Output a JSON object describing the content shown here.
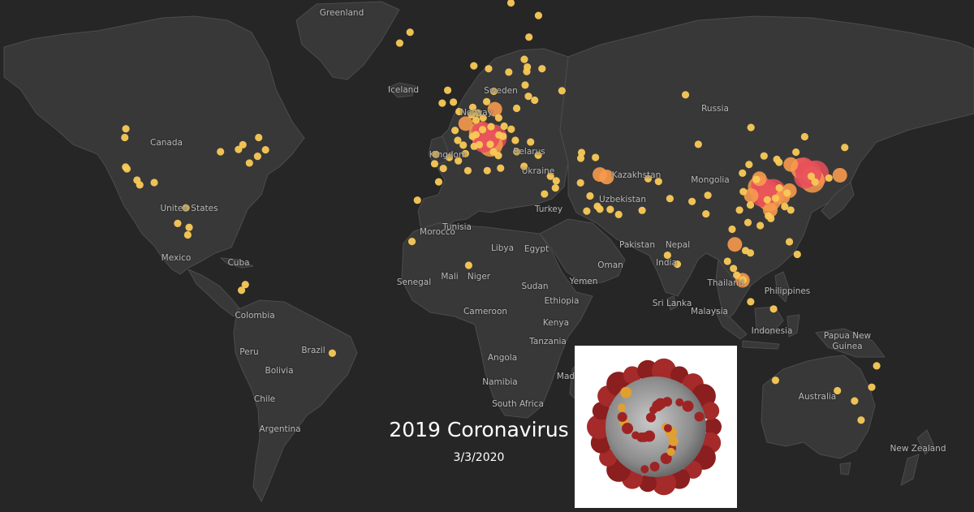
{
  "title": "2019 Coronavirus",
  "date": "3/3/2020",
  "labels": {
    "greenland": "Greenland",
    "iceland": "Iceland",
    "sweden": "Sweden",
    "norway": "Norway",
    "russia": "Russia",
    "canada": "Canada",
    "united_states": "United States",
    "kingdom": "Kingdom",
    "belarus": "Belarus",
    "ukraine": "Ukraine",
    "kazakhstan": "Kazakhstan",
    "mongolia": "Mongolia",
    "uzbekistan": "Uzbekistan",
    "turkey": "Turkey",
    "tunisia": "Tunisia",
    "morocco": "Morocco",
    "libya": "Libya",
    "egypt": "Egypt",
    "pakistan": "Pakistan",
    "nepal": "Nepal",
    "india": "India",
    "oman": "Oman",
    "yemen": "Yemen",
    "mexico": "Mexico",
    "cuba": "Cuba",
    "senegal": "Senegal",
    "mali": "Mali",
    "niger": "Niger",
    "sudan": "Sudan",
    "ethiopia": "Ethiopia",
    "cameroon": "Cameroon",
    "kenya": "Kenya",
    "tanzania": "Tanzania",
    "angola": "Angola",
    "namibia": "Namibia",
    "south_africa": "South Africa",
    "madagascar": "Mad",
    "thailand": "Thailand",
    "philippines": "Philippines",
    "sri_lanka": "Sri Lanka",
    "malaysia": "Malaysia",
    "indonesia": "Indonesia",
    "papua_new_guinea": "Papua New Guinea",
    "colombia": "Colombia",
    "peru": "Peru",
    "brazil": "Brazil",
    "bolivia": "Bolivia",
    "chile": "Chile",
    "argentina": "Argentina",
    "australia": "Australia",
    "new_zealand": "New Zealand"
  },
  "colors": {
    "background": "#262626",
    "land": "#383838",
    "border": "#4c4c4c",
    "marker_small": "#f9c956",
    "marker_medium": "#f79a4e",
    "marker_large": "#e8505b"
  },
  "markers": [
    {
      "lon": 112.3,
      "lat": 30.6,
      "level": "large"
    },
    {
      "lon": 10.0,
      "lat": 45.5,
      "level": "large"
    },
    {
      "lon": 128.0,
      "lat": 36.0,
      "level": "large"
    },
    {
      "lon": 54.0,
      "lat": 35.0,
      "level": "medium"
    },
    {
      "lon": 51.5,
      "lat": 35.7,
      "level": "medium"
    },
    {
      "lon": 114.0,
      "lat": 25.0,
      "level": "medium"
    },
    {
      "lon": 118.5,
      "lat": 29.0,
      "level": "medium"
    },
    {
      "lon": 110.0,
      "lat": 34.5,
      "level": "medium"
    },
    {
      "lon": 121.0,
      "lat": 31.0,
      "level": "medium"
    },
    {
      "lon": 139.5,
      "lat": 35.5,
      "level": "medium"
    },
    {
      "lon": 2.3,
      "lat": 48.8,
      "level": "medium"
    },
    {
      "lon": 13.0,
      "lat": 52.0,
      "level": "medium"
    },
    {
      "lon": 103.8,
      "lat": 1.3,
      "level": "medium"
    },
    {
      "lon": 101.0,
      "lat": 13.7,
      "level": "medium"
    },
    {
      "lon": 121.5,
      "lat": 38.5,
      "level": "medium"
    },
    {
      "lon": 107.0,
      "lat": 29.5,
      "level": "medium"
    },
    {
      "lon": 116.4,
      "lat": 39.9,
      "level": "small"
    },
    {
      "lon": 126.6,
      "lat": 45.7,
      "level": "small"
    },
    {
      "lon": 123.4,
      "lat": 41.8,
      "level": "small"
    },
    {
      "lon": 117.2,
      "lat": 39.1,
      "level": "small"
    },
    {
      "lon": 113.3,
      "lat": 23.1,
      "level": "small"
    },
    {
      "lon": 108.9,
      "lat": 34.3,
      "level": "small"
    },
    {
      "lon": 104.1,
      "lat": 30.7,
      "level": "small"
    },
    {
      "lon": 102.7,
      "lat": 25.0,
      "level": "small"
    },
    {
      "lon": 106.7,
      "lat": 26.6,
      "level": "small"
    },
    {
      "lon": 120.2,
      "lat": 30.3,
      "level": "small"
    },
    {
      "lon": 119.3,
      "lat": 26.1,
      "level": "small"
    },
    {
      "lon": 117.3,
      "lat": 31.8,
      "level": "small"
    },
    {
      "lon": 115.9,
      "lat": 28.7,
      "level": "small"
    },
    {
      "lon": 112.9,
      "lat": 28.2,
      "level": "small"
    },
    {
      "lon": 110.3,
      "lat": 20.0,
      "level": "small"
    },
    {
      "lon": 114.2,
      "lat": 22.3,
      "level": "small"
    },
    {
      "lon": 121.5,
      "lat": 25.0,
      "level": "small"
    },
    {
      "lon": 87.6,
      "lat": 43.8,
      "level": "small"
    },
    {
      "lon": 91.1,
      "lat": 29.6,
      "level": "small"
    },
    {
      "lon": 111.7,
      "lat": 40.8,
      "level": "small"
    },
    {
      "lon": 106.2,
      "lat": 38.5,
      "level": "small"
    },
    {
      "lon": 103.8,
      "lat": 36.1,
      "level": "small"
    },
    {
      "lon": 106.9,
      "lat": 47.9,
      "level": "small"
    },
    {
      "lon": 129.0,
      "lat": 35.2,
      "level": "small"
    },
    {
      "lon": 135.5,
      "lat": 34.7,
      "level": "small"
    },
    {
      "lon": 141.3,
      "lat": 43.0,
      "level": "small"
    },
    {
      "lon": 130.4,
      "lat": 33.6,
      "level": "small"
    },
    {
      "lon": 104.0,
      "lat": 1.4,
      "level": "small"
    },
    {
      "lon": 101.7,
      "lat": 3.1,
      "level": "small"
    },
    {
      "lon": 100.5,
      "lat": 5.4,
      "level": "small"
    },
    {
      "lon": 105.8,
      "lat": 21.0,
      "level": "small"
    },
    {
      "lon": 106.7,
      "lat": 10.8,
      "level": "small"
    },
    {
      "lon": 104.9,
      "lat": 11.6,
      "level": "small"
    },
    {
      "lon": 98.3,
      "lat": 7.9,
      "level": "small"
    },
    {
      "lon": 100.0,
      "lat": 18.8,
      "level": "small"
    },
    {
      "lon": 121.0,
      "lat": 14.6,
      "level": "small"
    },
    {
      "lon": 123.9,
      "lat": 10.3,
      "level": "small"
    },
    {
      "lon": 106.8,
      "lat": -6.2,
      "level": "small"
    },
    {
      "lon": 115.2,
      "lat": -8.7,
      "level": "small"
    },
    {
      "lon": 79.9,
      "lat": 6.9,
      "level": "small"
    },
    {
      "lon": 77.2,
      "lat": 28.6,
      "level": "small"
    },
    {
      "lon": 76.3,
      "lat": 10.0,
      "level": "small"
    },
    {
      "lon": 85.3,
      "lat": 27.7,
      "level": "small"
    },
    {
      "lon": 90.4,
      "lat": 23.8,
      "level": "small"
    },
    {
      "lon": 73.0,
      "lat": 33.7,
      "level": "small"
    },
    {
      "lon": 67.0,
      "lat": 24.9,
      "level": "small"
    },
    {
      "lon": 69.2,
      "lat": 34.5,
      "level": "small"
    },
    {
      "lon": 44.5,
      "lat": 40.2,
      "level": "small"
    },
    {
      "lon": 44.8,
      "lat": 41.7,
      "level": "small"
    },
    {
      "lon": 49.9,
      "lat": 40.4,
      "level": "small"
    },
    {
      "lon": 44.4,
      "lat": 33.3,
      "level": "small"
    },
    {
      "lon": 47.9,
      "lat": 29.4,
      "level": "small"
    },
    {
      "lon": 50.6,
      "lat": 26.2,
      "level": "small"
    },
    {
      "lon": 51.5,
      "lat": 25.3,
      "level": "small"
    },
    {
      "lon": 55.3,
      "lat": 25.2,
      "level": "small"
    },
    {
      "lon": 58.4,
      "lat": 23.6,
      "level": "small"
    },
    {
      "lon": 46.7,
      "lat": 24.7,
      "level": "small"
    },
    {
      "lon": 35.2,
      "lat": 31.8,
      "level": "small"
    },
    {
      "lon": 35.5,
      "lat": 33.9,
      "level": "small"
    },
    {
      "lon": 31.2,
      "lat": 30.0,
      "level": "small"
    },
    {
      "lon": 28.9,
      "lat": 41.0,
      "level": "small"
    },
    {
      "lon": 23.7,
      "lat": 38.0,
      "level": "small"
    },
    {
      "lon": 33.4,
      "lat": 35.2,
      "level": "small"
    },
    {
      "lon": 21.0,
      "lat": 41.9,
      "level": "small"
    },
    {
      "lon": 26.1,
      "lat": 44.4,
      "level": "small"
    },
    {
      "lon": 19.0,
      "lat": 47.5,
      "level": "small"
    },
    {
      "lon": 16.4,
      "lat": 48.2,
      "level": "small"
    },
    {
      "lon": 14.4,
      "lat": 50.1,
      "level": "small"
    },
    {
      "lon": 21.0,
      "lat": 52.2,
      "level": "small"
    },
    {
      "lon": 24.1,
      "lat": 56.9,
      "level": "small"
    },
    {
      "lon": 25.3,
      "lat": 54.7,
      "level": "small"
    },
    {
      "lon": 24.7,
      "lat": 59.4,
      "level": "small"
    },
    {
      "lon": 24.9,
      "lat": 60.2,
      "level": "small"
    },
    {
      "lon": 18.1,
      "lat": 59.3,
      "level": "small"
    },
    {
      "lon": 10.7,
      "lat": 59.9,
      "level": "small"
    },
    {
      "lon": 12.6,
      "lat": 55.7,
      "level": "small"
    },
    {
      "lon": 27.6,
      "lat": 53.9,
      "level": "small"
    },
    {
      "lon": 37.6,
      "lat": 55.8,
      "level": "small"
    },
    {
      "lon": 30.3,
      "lat": 59.9,
      "level": "small"
    },
    {
      "lon": 82.9,
      "lat": 55.0,
      "level": "small"
    },
    {
      "lon": 23.8,
      "lat": 61.5,
      "level": "small"
    },
    {
      "lon": 25.5,
      "lat": 65.0,
      "level": "small"
    },
    {
      "lon": 18.9,
      "lat": 69.6,
      "level": "small"
    },
    {
      "lon": 29.0,
      "lat": 68.0,
      "level": "small"
    },
    {
      "lon": 5.3,
      "lat": 60.4,
      "level": "small"
    },
    {
      "lon": 8.5,
      "lat": 47.4,
      "level": "small"
    },
    {
      "lon": 6.1,
      "lat": 46.2,
      "level": "small"
    },
    {
      "lon": 11.6,
      "lat": 48.1,
      "level": "small"
    },
    {
      "lon": 8.7,
      "lat": 50.1,
      "level": "small"
    },
    {
      "lon": 6.8,
      "lat": 51.2,
      "level": "small"
    },
    {
      "lon": 10.0,
      "lat": 53.6,
      "level": "small"
    },
    {
      "lon": 4.9,
      "lat": 52.4,
      "level": "small"
    },
    {
      "lon": 4.4,
      "lat": 50.8,
      "level": "small"
    },
    {
      "lon": 6.1,
      "lat": 49.6,
      "level": "small"
    },
    {
      "lon": 7.3,
      "lat": 43.7,
      "level": "small"
    },
    {
      "lon": 5.4,
      "lat": 43.3,
      "level": "small"
    },
    {
      "lon": 4.8,
      "lat": 45.8,
      "level": "small"
    },
    {
      "lon": 1.4,
      "lat": 43.6,
      "level": "small"
    },
    {
      "lon": -0.6,
      "lat": 44.8,
      "level": "small"
    },
    {
      "lon": -1.6,
      "lat": 47.2,
      "level": "small"
    },
    {
      "lon": -0.1,
      "lat": 51.5,
      "level": "small"
    },
    {
      "lon": -2.2,
      "lat": 53.5,
      "level": "small"
    },
    {
      "lon": -4.3,
      "lat": 55.9,
      "level": "small"
    },
    {
      "lon": -6.3,
      "lat": 53.3,
      "level": "small"
    },
    {
      "lon": -3.7,
      "lat": 40.4,
      "level": "small"
    },
    {
      "lon": 2.2,
      "lat": 41.4,
      "level": "small"
    },
    {
      "lon": -0.4,
      "lat": 39.5,
      "level": "small"
    },
    {
      "lon": -5.9,
      "lat": 37.4,
      "level": "small"
    },
    {
      "lon": -9.1,
      "lat": 38.7,
      "level": "small"
    },
    {
      "lon": -8.6,
      "lat": 41.2,
      "level": "small"
    },
    {
      "lon": 12.5,
      "lat": 41.9,
      "level": "small"
    },
    {
      "lon": 14.3,
      "lat": 40.9,
      "level": "small"
    },
    {
      "lon": 15.1,
      "lat": 37.5,
      "level": "small"
    },
    {
      "lon": 11.3,
      "lat": 43.8,
      "level": "small"
    },
    {
      "lon": 14.5,
      "lat": 46.1,
      "level": "small"
    },
    {
      "lon": 16.0,
      "lat": 45.8,
      "level": "small"
    },
    {
      "lon": 20.5,
      "lat": 44.8,
      "level": "small"
    },
    {
      "lon": 3.1,
      "lat": 36.8,
      "level": "small"
    },
    {
      "lon": 10.2,
      "lat": 36.8,
      "level": "small"
    },
    {
      "lon": -7.6,
      "lat": 33.6,
      "level": "small"
    },
    {
      "lon": -21.9,
      "lat": 64.1,
      "level": "small"
    },
    {
      "lon": -18.1,
      "lat": 65.7,
      "level": "small"
    },
    {
      "lon": -17.4,
      "lat": 14.7,
      "level": "small"
    },
    {
      "lon": 3.4,
      "lat": 6.5,
      "level": "small"
    },
    {
      "lon": -15.4,
      "lat": 28.1,
      "level": "small"
    },
    {
      "lon": -118.2,
      "lat": 34.1,
      "level": "small"
    },
    {
      "lon": -122.4,
      "lat": 37.8,
      "level": "small"
    },
    {
      "lon": -121.9,
      "lat": 37.3,
      "level": "small"
    },
    {
      "lon": -117.2,
      "lat": 32.7,
      "level": "small"
    },
    {
      "lon": -122.3,
      "lat": 47.6,
      "level": "small"
    },
    {
      "lon": -122.7,
      "lat": 45.5,
      "level": "small"
    },
    {
      "lon": -111.9,
      "lat": 33.4,
      "level": "small"
    },
    {
      "lon": -87.6,
      "lat": 41.9,
      "level": "small"
    },
    {
      "lon": -79.4,
      "lat": 43.7,
      "level": "small"
    },
    {
      "lon": -81.0,
      "lat": 42.5,
      "level": "small"
    },
    {
      "lon": -73.6,
      "lat": 45.5,
      "level": "small"
    },
    {
      "lon": -71.1,
      "lat": 42.4,
      "level": "small"
    },
    {
      "lon": -74.0,
      "lat": 40.7,
      "level": "small"
    },
    {
      "lon": -77.0,
      "lat": 38.9,
      "level": "small"
    },
    {
      "lon": -99.1,
      "lat": 19.4,
      "level": "small"
    },
    {
      "lon": -103.3,
      "lat": 20.7,
      "level": "small"
    },
    {
      "lon": -100.3,
      "lat": 25.7,
      "level": "small"
    },
    {
      "lon": -99.6,
      "lat": 16.9,
      "level": "small"
    },
    {
      "lon": -78.5,
      "lat": -0.2,
      "level": "small"
    },
    {
      "lon": -79.9,
      "lat": -2.2,
      "level": "small"
    },
    {
      "lon": -46.6,
      "lat": -23.5,
      "level": "small"
    },
    {
      "lon": 151.2,
      "lat": -33.9,
      "level": "small"
    },
    {
      "lon": 144.9,
      "lat": -37.8,
      "level": "small"
    },
    {
      "lon": 153.0,
      "lat": -27.5,
      "level": "small"
    },
    {
      "lon": 138.6,
      "lat": -34.9,
      "level": "small"
    },
    {
      "lon": 115.9,
      "lat": -31.9,
      "level": "small"
    },
    {
      "lon": 147.3,
      "lat": -42.9,
      "level": "small"
    }
  ]
}
